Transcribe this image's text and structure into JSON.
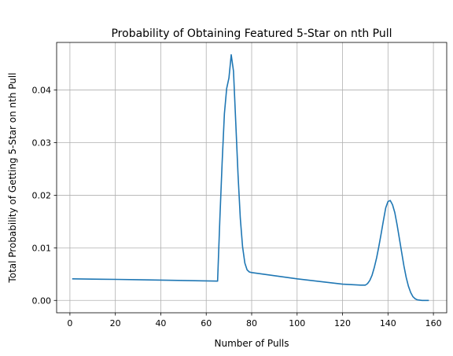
{
  "chart_data": {
    "type": "line",
    "title": "Probability of Obtaining Featured 5-Star on nth Pull",
    "xlabel": "Number of Pulls",
    "ylabel": "Total Probability of Getting 5-Star on nth Pull",
    "xlim": [
      -5.85,
      165.85
    ],
    "ylim": [
      -0.00235,
      0.04905
    ],
    "xticks": [
      0,
      20,
      40,
      60,
      80,
      100,
      120,
      140,
      160
    ],
    "yticks": [
      0.0,
      0.01,
      0.02,
      0.03,
      0.04
    ],
    "ytick_labels": [
      "0.00",
      "0.01",
      "0.02",
      "0.03",
      "0.04"
    ],
    "grid": true,
    "line_color": "#1f77b4",
    "series": [
      {
        "x": [
          1,
          10,
          20,
          30,
          40,
          50,
          60,
          65,
          66,
          67,
          68,
          69,
          70,
          71,
          72,
          73,
          74,
          75,
          76,
          77,
          78,
          79,
          80,
          90,
          100,
          110,
          120,
          128,
          130,
          131,
          132,
          133,
          134,
          135,
          136,
          137,
          138,
          139,
          140,
          141,
          142,
          143,
          144,
          145,
          146,
          147,
          148,
          149,
          150,
          151,
          152,
          153,
          154,
          155,
          158
        ],
        "y": [
          0.0041,
          0.00405,
          0.004,
          0.00393,
          0.00386,
          0.00379,
          0.00371,
          0.00367,
          0.0155,
          0.0262,
          0.0355,
          0.0403,
          0.0423,
          0.0467,
          0.0436,
          0.0338,
          0.0239,
          0.0156,
          0.0102,
          0.0071,
          0.0058,
          0.0054,
          0.0053,
          0.0047,
          0.0041,
          0.0036,
          0.0031,
          0.0029,
          0.0029,
          0.0032,
          0.0038,
          0.0048,
          0.0063,
          0.0081,
          0.0103,
          0.0127,
          0.0152,
          0.0176,
          0.0188,
          0.019,
          0.0182,
          0.0167,
          0.0144,
          0.0118,
          0.0092,
          0.0066,
          0.0044,
          0.0027,
          0.0015,
          0.0007,
          0.0003,
          0.0001,
          5e-05,
          0.0,
          0.0
        ]
      }
    ]
  }
}
